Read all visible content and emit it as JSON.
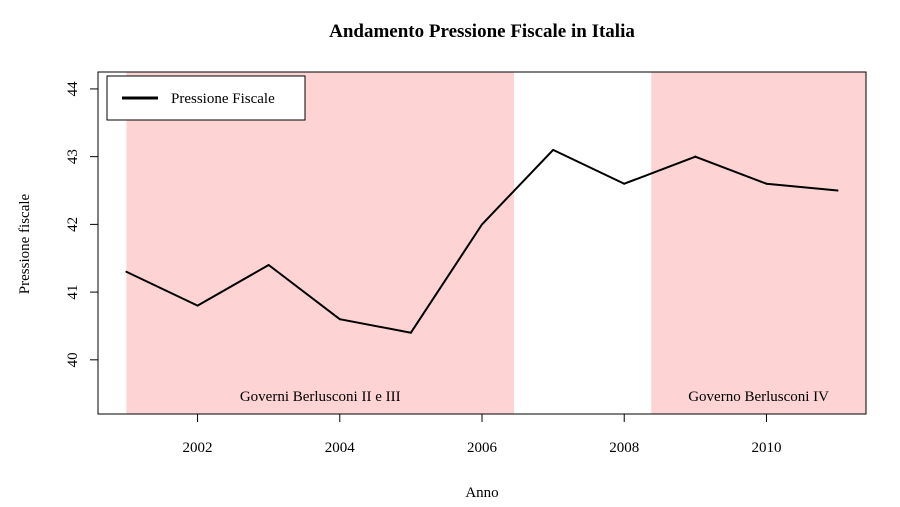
{
  "chart_data": {
    "type": "line",
    "title": "Andamento Pressione Fiscale in Italia",
    "xlabel": "Anno",
    "ylabel": "Pressione fiscale",
    "xlim": [
      2000.6,
      2011.4
    ],
    "ylim": [
      39.2,
      44.25
    ],
    "x_ticks": [
      2002,
      2004,
      2006,
      2008,
      2010
    ],
    "y_ticks": [
      40,
      41,
      42,
      43,
      44
    ],
    "grid": false,
    "legend_position": "top-left",
    "series": [
      {
        "name": "Pressione Fiscale",
        "color": "#000000",
        "x": [
          2001,
          2002,
          2003,
          2004,
          2005,
          2006,
          2007,
          2008,
          2009,
          2010,
          2011
        ],
        "values": [
          41.3,
          40.8,
          41.4,
          40.6,
          40.4,
          42.0,
          43.1,
          42.6,
          43.0,
          42.6,
          42.5
        ]
      }
    ],
    "shaded_regions": [
      {
        "label": "Governi Berlusconi II e III",
        "x_start": 2001.0,
        "x_end": 2006.45,
        "color": "#fdd3d4"
      },
      {
        "label": "Governo Berlusconi IV",
        "x_start": 2008.38,
        "x_end": 2011.4,
        "color": "#fdd3d4"
      }
    ]
  }
}
